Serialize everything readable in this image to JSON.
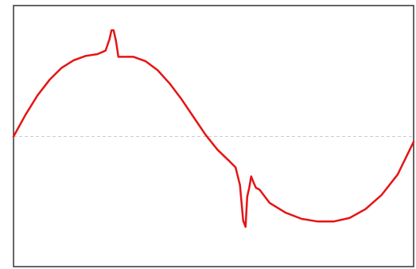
{
  "chart_data": {
    "type": "line",
    "title": "",
    "xlabel": "",
    "ylabel": "",
    "xlim": [
      0,
      100
    ],
    "ylim": [
      -1.2,
      1.2
    ],
    "grid": false,
    "legend": "none",
    "reference_line": {
      "y": 0,
      "style": "dashed",
      "color": "#cccccc"
    },
    "series": [
      {
        "color": "#e61414",
        "x": [
          0,
          3,
          6,
          9,
          12,
          15,
          18,
          21,
          23,
          24,
          24.5,
          25,
          25.6,
          26.2,
          27,
          30,
          33,
          36,
          39,
          42,
          45,
          48,
          51,
          54,
          55.5,
          56.6,
          57.4,
          58,
          58.4,
          58.9,
          59.4,
          60,
          60.6,
          61.5,
          64,
          68,
          72,
          76,
          80,
          84,
          88,
          92,
          96,
          100
        ],
        "y": [
          0,
          0.245,
          0.465,
          0.64,
          0.775,
          0.86,
          0.91,
          0.93,
          0.97,
          1.1,
          1.2,
          1.2,
          1.08,
          0.9,
          0.9,
          0.9,
          0.85,
          0.75,
          0.6,
          0.42,
          0.22,
          0.02,
          -0.15,
          -0.28,
          -0.35,
          -0.55,
          -0.95,
          -1.02,
          -0.68,
          -0.58,
          -0.45,
          -0.52,
          -0.58,
          -0.6,
          -0.75,
          -0.86,
          -0.93,
          -0.96,
          -0.96,
          -0.92,
          -0.82,
          -0.66,
          -0.43,
          -0.06
        ]
      }
    ]
  }
}
